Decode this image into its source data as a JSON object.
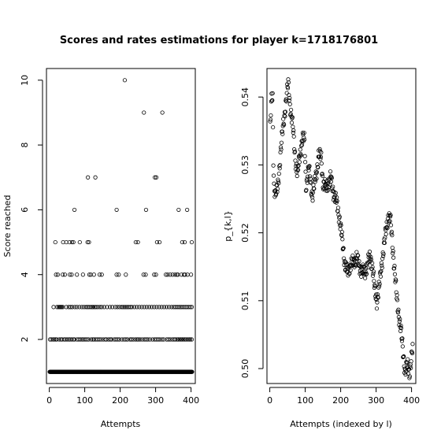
{
  "figure": {
    "title": "Scores and rates estimations for player k=1718176801"
  },
  "chart_data": [
    {
      "type": "scatter",
      "xlabel": "Attempts",
      "ylabel": "Score reached",
      "xlim": [
        -8,
        412
      ],
      "ylim": [
        0.64,
        10.36
      ],
      "xticks": [
        0,
        100,
        200,
        300,
        400
      ],
      "yticks": [
        2,
        4,
        6,
        8,
        10
      ],
      "grid": false,
      "legend": "none",
      "point_color": "#000000",
      "series": [
        {
          "levels": [
            {
              "y": 1,
              "x": [
                1,
                2,
                3,
                4,
                5,
                6,
                7,
                8,
                9,
                10,
                11,
                12,
                13,
                14,
                15,
                16,
                17,
                18,
                19,
                20,
                21,
                22,
                23,
                24,
                25,
                26,
                27,
                28,
                29,
                30,
                31,
                32,
                33,
                34,
                35,
                36,
                37,
                38,
                39,
                40,
                41,
                42,
                43,
                44,
                45,
                46,
                47,
                48,
                49,
                50,
                51,
                52,
                53,
                54,
                55,
                56,
                57,
                58,
                59,
                60,
                61,
                62,
                63,
                64,
                65,
                66,
                67,
                68,
                69,
                70,
                71,
                72,
                73,
                74,
                75,
                76,
                77,
                78,
                79,
                80,
                81,
                82,
                83,
                84,
                85,
                86,
                87,
                88,
                89,
                90,
                91,
                92,
                93,
                94,
                95,
                96,
                97,
                98,
                99,
                100,
                101,
                102,
                103,
                104,
                105,
                106,
                107,
                108,
                109,
                110,
                111,
                112,
                113,
                114,
                115,
                116,
                117,
                118,
                119,
                120,
                121,
                122,
                123,
                124,
                125,
                126,
                127,
                128,
                129,
                130,
                131,
                132,
                133,
                134,
                135,
                136,
                137,
                138,
                139,
                140,
                141,
                142,
                143,
                144,
                145,
                146,
                147,
                148,
                149,
                150,
                151,
                152,
                153,
                154,
                155,
                156,
                157,
                158,
                159,
                160,
                161,
                162,
                163,
                164,
                165,
                166,
                167,
                168,
                169,
                170,
                171,
                172,
                173,
                174,
                175,
                176,
                177,
                178,
                179,
                180,
                181,
                182,
                183,
                184,
                185,
                186,
                187,
                188,
                189,
                190,
                191,
                192,
                193,
                194,
                195,
                196,
                197,
                198,
                199,
                200,
                201,
                202,
                203,
                204,
                205,
                206,
                207,
                208,
                209,
                210,
                211,
                212,
                213,
                214,
                215,
                216,
                217,
                218,
                219,
                220,
                221,
                222,
                223,
                224,
                225,
                226,
                227,
                228,
                229,
                230,
                231,
                232,
                233,
                234,
                235,
                236,
                237,
                238,
                239,
                240,
                241,
                242,
                243,
                244,
                245,
                246,
                247,
                248,
                249,
                250,
                251,
                252,
                253,
                254,
                255,
                256,
                257,
                258,
                259,
                260,
                261,
                262,
                263,
                264,
                265,
                266,
                267,
                268,
                269,
                270,
                271,
                272,
                273,
                274,
                275,
                276,
                277,
                278,
                279,
                280,
                281,
                282,
                283,
                284,
                285,
                286,
                287,
                288,
                289,
                290,
                291,
                292,
                293,
                294,
                295,
                296,
                297,
                298,
                299,
                300,
                301,
                302,
                303,
                304,
                305,
                306,
                307,
                308,
                309,
                310,
                311,
                312,
                313,
                314,
                315,
                316,
                317,
                318,
                319,
                320,
                321,
                322,
                323,
                324,
                325,
                326,
                327,
                328,
                329,
                330,
                331,
                332,
                333,
                334,
                335,
                336,
                337,
                338,
                339,
                340,
                341,
                342,
                343,
                344,
                345,
                346,
                347,
                348,
                349,
                350,
                351,
                352,
                353,
                354,
                355,
                356,
                357,
                358,
                359,
                360,
                361,
                362,
                363,
                364,
                365,
                366,
                367,
                368,
                369,
                370,
                371,
                372,
                373,
                374,
                375,
                376,
                377,
                378,
                379,
                380,
                381,
                382,
                383,
                384,
                385,
                386,
                387,
                388,
                389,
                390,
                391,
                392,
                393,
                394,
                395,
                396,
                397,
                398,
                399,
                400,
                401,
                402,
                403
              ]
            },
            {
              "y": 2,
              "x": [
                2,
                6,
                11,
                14,
                18,
                21,
                28,
                33,
                36,
                42,
                45,
                50,
                55,
                58,
                63,
                68,
                71,
                78,
                83,
                88,
                93,
                96,
                101,
                106,
                111,
                118,
                123,
                126,
                131,
                136,
                141,
                146,
                152,
                158,
                161,
                167,
                172,
                176,
                183,
                188,
                193,
                198,
                205,
                211,
                216,
                221,
                228,
                232,
                237,
                243,
                248,
                251,
                256,
                262,
                268,
                273,
                278,
                284,
                291,
                297,
                302,
                307,
                312,
                318,
                323,
                331,
                336,
                341,
                347,
                352,
                356,
                361,
                364,
                368,
                372,
                375,
                379,
                383,
                386,
                391,
                395,
                398,
                402
              ]
            },
            {
              "y": 3,
              "x": [
                12,
                22,
                26,
                29,
                31,
                33,
                35,
                38,
                48,
                55,
                60,
                65,
                72,
                78,
                85,
                92,
                98,
                104,
                108,
                112,
                117,
                121,
                124,
                128,
                132,
                137,
                143,
                148,
                155,
                163,
                171,
                178,
                186,
                192,
                198,
                204,
                208,
                212,
                216,
                220,
                224,
                229,
                233,
                240,
                247,
                254,
                261,
                268,
                275,
                282,
                289,
                296,
                303,
                310,
                317,
                324,
                331,
                338,
                345,
                351,
                356,
                361,
                366,
                370,
                374,
                379,
                384,
                388,
                393,
                398,
                402
              ]
            },
            {
              "y": 4,
              "x": [
                19,
                24,
                38,
                44,
                58,
                63,
                78,
                95,
                113,
                117,
                126,
                142,
                148,
                190,
                196,
                216,
                266,
                272,
                296,
                301,
                329,
                334,
                341,
                348,
                355,
                360,
                363,
                373,
                380,
                383,
                390,
                400
              ]
            },
            {
              "y": 5,
              "x": [
                17,
                39,
                48,
                57,
                64,
                68,
                86,
                108,
                112,
                244,
                250,
                304,
                311,
                375,
                382,
                402
              ]
            },
            {
              "y": 6,
              "x": [
                71,
                190,
                273,
                365,
                389
              ]
            },
            {
              "y": 7,
              "x": [
                109,
                130,
                298,
                302
              ]
            },
            {
              "y": 9,
              "x": [
                267,
                319
              ]
            },
            {
              "y": 10,
              "x": [
                213
              ]
            }
          ]
        }
      ]
    },
    {
      "type": "scatter",
      "xlabel": "Attempts (indexed by l)",
      "ylabel": "p_{k,l}",
      "xlim": [
        -8,
        412
      ],
      "ylim": [
        0.4978,
        0.5442
      ],
      "xticks": [
        0,
        100,
        200,
        300,
        400
      ],
      "yticks": [
        0.5,
        0.51,
        0.52,
        0.53,
        0.54
      ],
      "ytick_labels": [
        "0.50",
        "0.51",
        "0.52",
        "0.53",
        "0.54"
      ],
      "grid": false,
      "legend": "none",
      "point_color": "#000000",
      "anchors": [
        [
          1,
          0.5355
        ],
        [
          3,
          0.5375
        ],
        [
          5,
          0.5395
        ],
        [
          8,
          0.54
        ],
        [
          10,
          0.531
        ],
        [
          12,
          0.527
        ],
        [
          16,
          0.5255
        ],
        [
          22,
          0.5265
        ],
        [
          30,
          0.5315
        ],
        [
          38,
          0.536
        ],
        [
          45,
          0.539
        ],
        [
          52,
          0.542
        ],
        [
          58,
          0.5385
        ],
        [
          65,
          0.5355
        ],
        [
          72,
          0.531
        ],
        [
          78,
          0.5285
        ],
        [
          85,
          0.5315
        ],
        [
          92,
          0.534
        ],
        [
          98,
          0.5335
        ],
        [
          102,
          0.527
        ],
        [
          110,
          0.5295
        ],
        [
          115,
          0.5275
        ],
        [
          120,
          0.5255
        ],
        [
          126,
          0.527
        ],
        [
          132,
          0.529
        ],
        [
          138,
          0.5315
        ],
        [
          145,
          0.531
        ],
        [
          150,
          0.5275
        ],
        [
          158,
          0.5265
        ],
        [
          166,
          0.5275
        ],
        [
          172,
          0.528
        ],
        [
          180,
          0.526
        ],
        [
          188,
          0.5245
        ],
        [
          196,
          0.5225
        ],
        [
          204,
          0.519
        ],
        [
          212,
          0.5155
        ],
        [
          220,
          0.514
        ],
        [
          228,
          0.5155
        ],
        [
          236,
          0.5155
        ],
        [
          245,
          0.5165
        ],
        [
          252,
          0.515
        ],
        [
          260,
          0.5145
        ],
        [
          268,
          0.514
        ],
        [
          276,
          0.5155
        ],
        [
          284,
          0.5165
        ],
        [
          290,
          0.515
        ],
        [
          296,
          0.5115
        ],
        [
          302,
          0.51
        ],
        [
          310,
          0.5125
        ],
        [
          318,
          0.5165
        ],
        [
          326,
          0.5195
        ],
        [
          334,
          0.5225
        ],
        [
          340,
          0.522
        ],
        [
          346,
          0.5185
        ],
        [
          352,
          0.5145
        ],
        [
          358,
          0.5105
        ],
        [
          364,
          0.508
        ],
        [
          370,
          0.5055
        ],
        [
          376,
          0.5025
        ],
        [
          382,
          0.4995
        ],
        [
          388,
          0.5005
        ],
        [
          394,
          0.4995
        ],
        [
          400,
          0.5015
        ],
        [
          403,
          0.503
        ]
      ],
      "noise_amplitude": 0.0012,
      "x_count": 403
    }
  ]
}
